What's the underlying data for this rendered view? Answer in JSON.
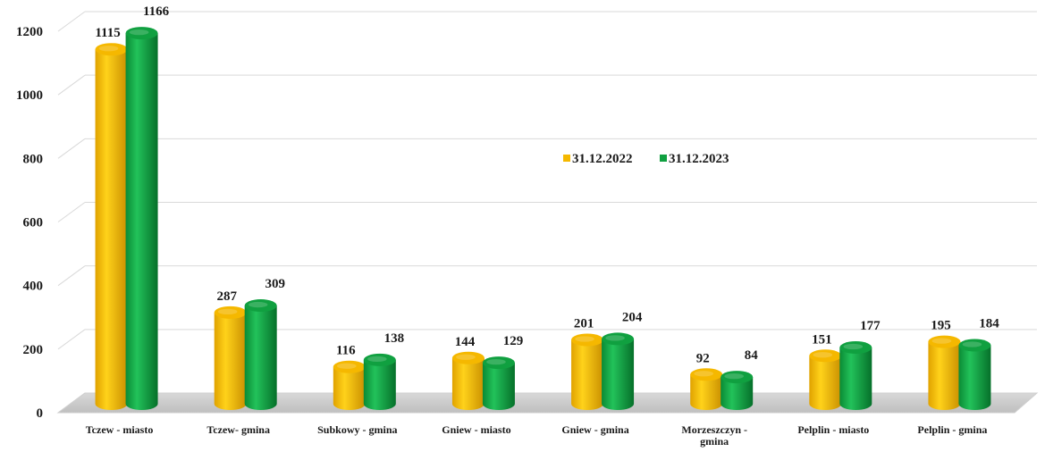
{
  "chart_data": {
    "type": "bar",
    "title": "",
    "xlabel": "",
    "ylabel": "",
    "ylim": [
      0,
      1200
    ],
    "yticks": [
      0,
      200,
      400,
      600,
      800,
      1000,
      1200
    ],
    "grid": true,
    "legend_position": "center",
    "categories": [
      [
        "Tczew - miasto"
      ],
      [
        "Tczew- gmina"
      ],
      [
        "Subkowy - gmina"
      ],
      [
        "Gniew - miasto"
      ],
      [
        "Gniew - gmina"
      ],
      [
        "Morzeszczyn -",
        "gmina"
      ],
      [
        "Pelplin - miasto"
      ],
      [
        "Pelplin - gmina"
      ]
    ],
    "series": [
      {
        "name": "31.12.2022",
        "color": "#f5b800",
        "values": [
          1115,
          287,
          116,
          144,
          201,
          92,
          151,
          195
        ]
      },
      {
        "name": "31.12.2023",
        "color": "#10a040",
        "values": [
          1166,
          309,
          138,
          129,
          204,
          84,
          177,
          184
        ]
      }
    ]
  }
}
